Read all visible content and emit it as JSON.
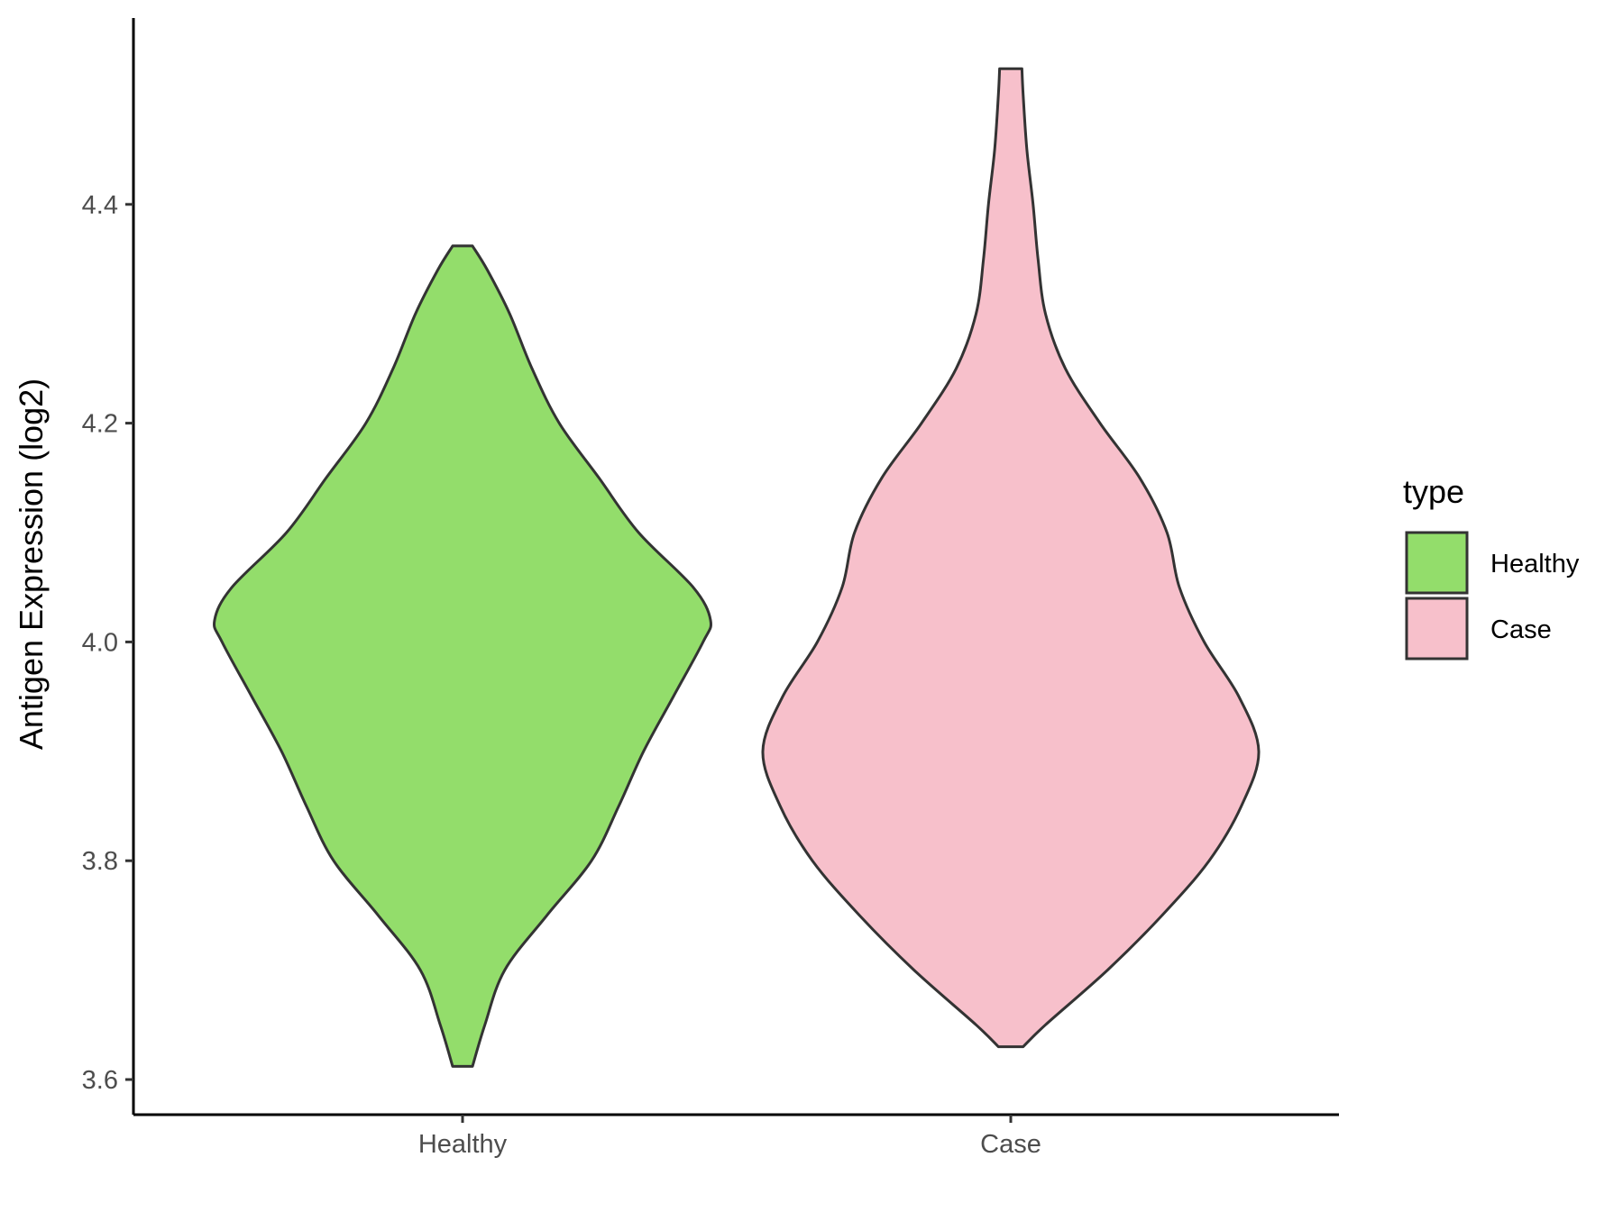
{
  "chart_data": {
    "type": "violin",
    "title": "",
    "xlabel": "",
    "ylabel": "Antigen Expression (log2)",
    "ylim": [
      3.56,
      4.57
    ],
    "yticks": [
      "3.6",
      "3.8",
      "4.0",
      "4.2",
      "4.4"
    ],
    "categories": [
      "Healthy",
      "Case"
    ],
    "grid": false,
    "legend": {
      "title": "type",
      "position": "right",
      "entries": [
        "Healthy",
        "Case"
      ]
    },
    "series": [
      {
        "name": "Healthy",
        "color": "#93dd6b",
        "min": 3.612,
        "max": 4.362,
        "density": [
          [
            3.612,
            0.04
          ],
          [
            3.65,
            0.09
          ],
          [
            3.7,
            0.17
          ],
          [
            3.75,
            0.34
          ],
          [
            3.8,
            0.52
          ],
          [
            3.85,
            0.63
          ],
          [
            3.9,
            0.73
          ],
          [
            3.95,
            0.85
          ],
          [
            4.0,
            0.97
          ],
          [
            4.02,
            1.0
          ],
          [
            4.05,
            0.93
          ],
          [
            4.1,
            0.71
          ],
          [
            4.15,
            0.55
          ],
          [
            4.2,
            0.39
          ],
          [
            4.25,
            0.28
          ],
          [
            4.3,
            0.19
          ],
          [
            4.34,
            0.1
          ],
          [
            4.362,
            0.04
          ]
        ]
      },
      {
        "name": "Case",
        "color": "#f7c0cb",
        "min": 3.63,
        "max": 4.524,
        "density": [
          [
            3.63,
            0.05
          ],
          [
            3.65,
            0.14
          ],
          [
            3.7,
            0.39
          ],
          [
            3.75,
            0.61
          ],
          [
            3.8,
            0.8
          ],
          [
            3.85,
            0.93
          ],
          [
            3.9,
            1.0
          ],
          [
            3.95,
            0.92
          ],
          [
            4.0,
            0.78
          ],
          [
            4.05,
            0.68
          ],
          [
            4.1,
            0.63
          ],
          [
            4.15,
            0.52
          ],
          [
            4.2,
            0.36
          ],
          [
            4.25,
            0.22
          ],
          [
            4.3,
            0.14
          ],
          [
            4.35,
            0.11
          ],
          [
            4.4,
            0.09
          ],
          [
            4.45,
            0.065
          ],
          [
            4.5,
            0.05
          ],
          [
            4.524,
            0.045
          ]
        ]
      }
    ]
  }
}
